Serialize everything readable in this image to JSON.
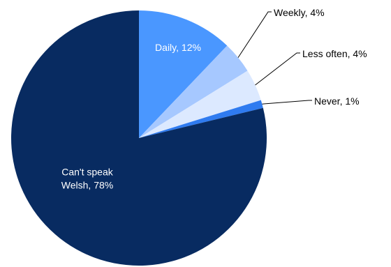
{
  "chart_data": {
    "type": "pie",
    "start_angle_deg": 0,
    "direction": "clockwise",
    "slices": [
      {
        "label": "Daily",
        "value": 12,
        "display": "Daily, 12%",
        "color": "#4a97ff",
        "label_color": "#ffffff",
        "label_position": "inside"
      },
      {
        "label": "Weekly",
        "value": 4,
        "display": "Weekly, 4%",
        "color": "#a6c8ff",
        "label_color": "#000000",
        "label_position": "outside"
      },
      {
        "label": "Less often",
        "value": 4,
        "display": "Less often, 4%",
        "color": "#dce9ff",
        "label_color": "#000000",
        "label_position": "outside"
      },
      {
        "label": "Never",
        "value": 1,
        "display": "Never, 1%",
        "color": "#2f7bf0",
        "label_color": "#000000",
        "label_position": "outside"
      },
      {
        "label": "Can't speak Welsh",
        "value": 78,
        "display": [
          "Can't speak",
          "Welsh, 78%"
        ],
        "color": "#082b61",
        "label_color": "#ffffff",
        "label_position": "inside"
      }
    ]
  }
}
